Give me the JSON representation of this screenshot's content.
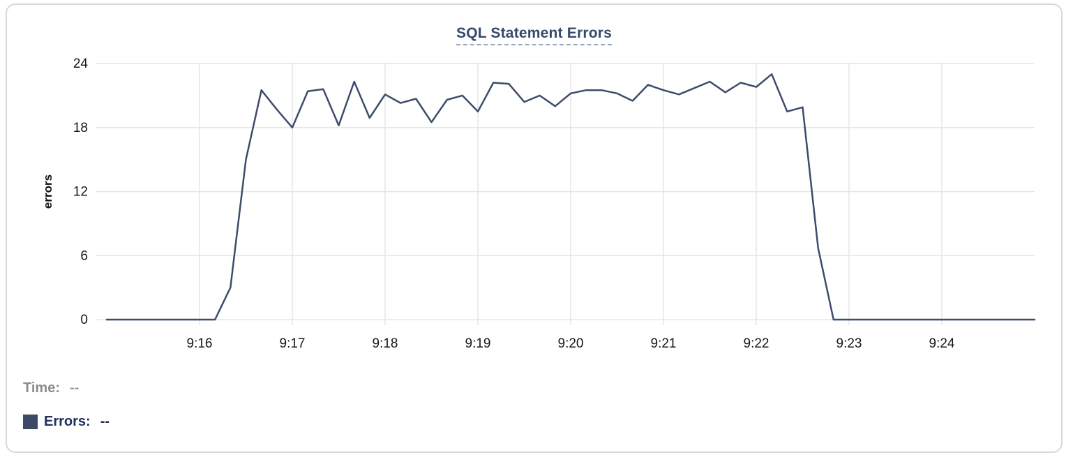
{
  "card": {
    "title": "SQL Statement Errors"
  },
  "tooltip_readout": {
    "time_label": "Time:",
    "time_value": "--",
    "errors_label": "Errors:",
    "errors_value": "--"
  },
  "colors": {
    "line": "#3d4c6b",
    "swatch": "#3d4a66",
    "grid": "#e5e5e5",
    "tick_text": "#161616",
    "axis_title_text": "#111111",
    "title_text": "#37496b",
    "title_dash": "#9aa6bb",
    "footer_gray": "#8c8c8c",
    "footer_gray_value": "#9a9a9a",
    "footer_navy": "#20305c",
    "card_border": "#d8d8d8"
  },
  "chart_data": {
    "type": "line",
    "title": "SQL Statement Errors",
    "xlabel": "",
    "ylabel": "errors",
    "ylim": [
      0,
      24
    ],
    "y_ticks": [
      0,
      6,
      12,
      18,
      24
    ],
    "x_ticks": [
      "9:16",
      "9:17",
      "9:18",
      "9:19",
      "9:20",
      "9:21",
      "9:22",
      "9:23",
      "9:24"
    ],
    "x_range": [
      "9:15:00",
      "9:25:00"
    ],
    "interval_seconds": 10,
    "grid": true,
    "legend_position": "bottom-left",
    "series": [
      {
        "name": "Errors",
        "x": [
          "9:15:00",
          "9:15:10",
          "9:15:20",
          "9:15:30",
          "9:15:40",
          "9:15:50",
          "9:16:00",
          "9:16:10",
          "9:16:20",
          "9:16:30",
          "9:16:40",
          "9:16:50",
          "9:17:00",
          "9:17:10",
          "9:17:20",
          "9:17:30",
          "9:17:40",
          "9:17:50",
          "9:18:00",
          "9:18:10",
          "9:18:20",
          "9:18:30",
          "9:18:40",
          "9:18:50",
          "9:19:00",
          "9:19:10",
          "9:19:20",
          "9:19:30",
          "9:19:40",
          "9:19:50",
          "9:20:00",
          "9:20:10",
          "9:20:20",
          "9:20:30",
          "9:20:40",
          "9:20:50",
          "9:21:00",
          "9:21:10",
          "9:21:20",
          "9:21:30",
          "9:21:40",
          "9:21:50",
          "9:22:00",
          "9:22:10",
          "9:22:20",
          "9:22:30",
          "9:22:40",
          "9:22:50",
          "9:23:00",
          "9:23:10",
          "9:23:20",
          "9:23:30",
          "9:23:40",
          "9:23:50",
          "9:24:00",
          "9:24:10",
          "9:24:20",
          "9:24:30",
          "9:24:40",
          "9:24:50",
          "9:25:00"
        ],
        "values": [
          0,
          0,
          0,
          0,
          0,
          0,
          0,
          0,
          3,
          15,
          21.5,
          19.7,
          18,
          21.4,
          21.6,
          18.2,
          22.3,
          18.9,
          21.1,
          20.3,
          20.7,
          18.5,
          20.6,
          21,
          19.5,
          22.2,
          22.1,
          20.4,
          21,
          20,
          21.2,
          21.5,
          21.5,
          21.2,
          20.5,
          22,
          21.5,
          21.1,
          21.7,
          22.3,
          21.3,
          22.2,
          21.8,
          23,
          19.5,
          19.9,
          6.7,
          0,
          0,
          0,
          0,
          0,
          0,
          0,
          0,
          0,
          0,
          0,
          0,
          0,
          0
        ]
      }
    ]
  }
}
